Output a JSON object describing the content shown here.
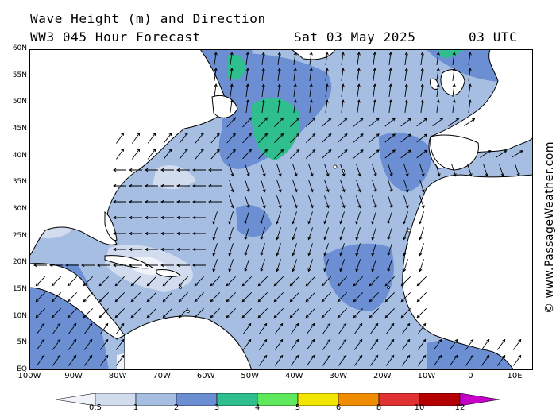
{
  "header": {
    "line1": "Wave Height (m) and Direction",
    "line2": "WW3 045 Hour Forecast",
    "date": "Sat 03 May 2025",
    "time": "03 UTC"
  },
  "credit": "© www.PassageWeather.com",
  "axes": {
    "lat_labels": [
      "60N",
      "55N",
      "50N",
      "45N",
      "40N",
      "35N",
      "30N",
      "25N",
      "20N",
      "15N",
      "10N",
      "5N",
      "EQ"
    ],
    "lon_labels": [
      "100W",
      "90W",
      "80W",
      "70W",
      "60W",
      "50W",
      "40W",
      "30W",
      "20W",
      "10W",
      "0",
      "10E"
    ]
  },
  "legend": {
    "ticks": [
      "0.5",
      "1",
      "2",
      "3",
      "4",
      "5",
      "6",
      "8",
      "10",
      "12"
    ],
    "colors": [
      "#f0f3fa",
      "#d2dcef",
      "#a6bee2",
      "#6b8fd2",
      "#2fbf8f",
      "#5ee85c",
      "#f2e600",
      "#f08c00",
      "#e03232",
      "#b40000",
      "#c800c8"
    ]
  },
  "colors": {
    "land": "#ffffff",
    "coast": "#000000",
    "arrow": "#000000"
  }
}
